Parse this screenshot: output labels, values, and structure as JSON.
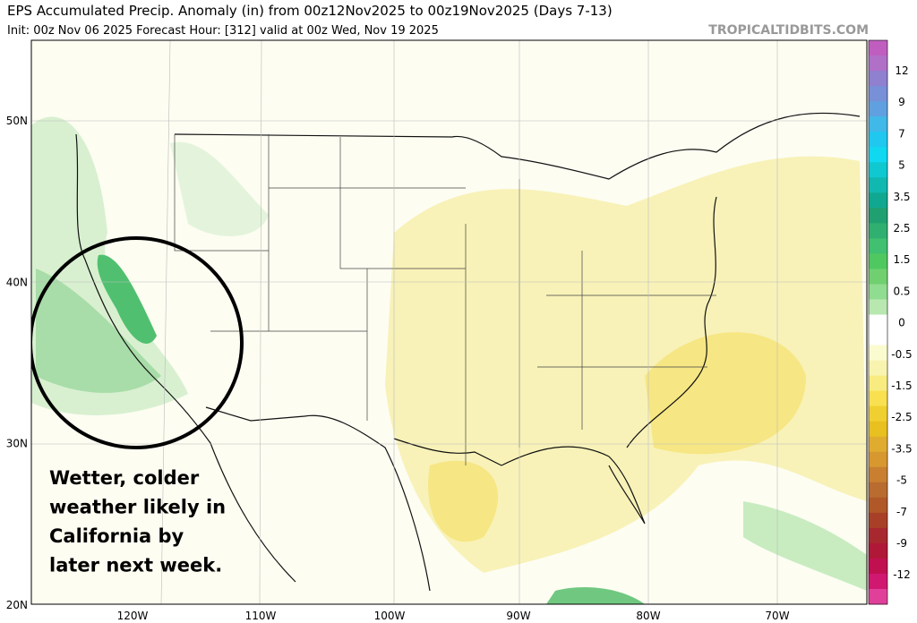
{
  "header": {
    "title": "EPS Accumulated Precip. Anomaly (in) from 00z12Nov2025 to 00z19Nov2025 (Days 7-13)",
    "subtitle": "Init: 00z Nov 06 2025   Forecast Hour: [312]   valid at 00z Wed, Nov 19 2025",
    "site": "TROPICALTIDBITS.COM"
  },
  "map": {
    "lat_labels": [
      "50N",
      "40N",
      "30N",
      "20N"
    ],
    "lon_labels": [
      "120W",
      "110W",
      "100W",
      "90W",
      "80W",
      "70W"
    ]
  },
  "colorbar": {
    "labels": [
      "12",
      "9",
      "7",
      "5",
      "3.5",
      "2.5",
      "1.5",
      "0.5",
      "0",
      "-0.5",
      "-1.5",
      "-2.5",
      "-3.5",
      "-5",
      "-7",
      "-9",
      "-12"
    ],
    "colors": [
      "#c05ec0",
      "#b070c8",
      "#9080d0",
      "#7890d8",
      "#60a0e0",
      "#40b8e8",
      "#20c8f0",
      "#10d8f0",
      "#10c8d0",
      "#10b8b0",
      "#10a890",
      "#20a070",
      "#30b070",
      "#40c070",
      "#50c860",
      "#70d070",
      "#90dc90",
      "#b8e8b0",
      "#ffffff",
      "#ffffff",
      "#fbfbd0",
      "#f8f4b0",
      "#f8ec80",
      "#f8e050",
      "#f0d030",
      "#e8c020",
      "#e0ac30",
      "#d89830",
      "#c88030",
      "#b86c30",
      "#b05828",
      "#a84028",
      "#a82830",
      "#b01838",
      "#c01050",
      "#d01870",
      "#e0409a"
    ]
  },
  "annotation": {
    "lines": [
      "Wetter, colder",
      "weather likely in",
      "California by",
      "later next week."
    ]
  }
}
